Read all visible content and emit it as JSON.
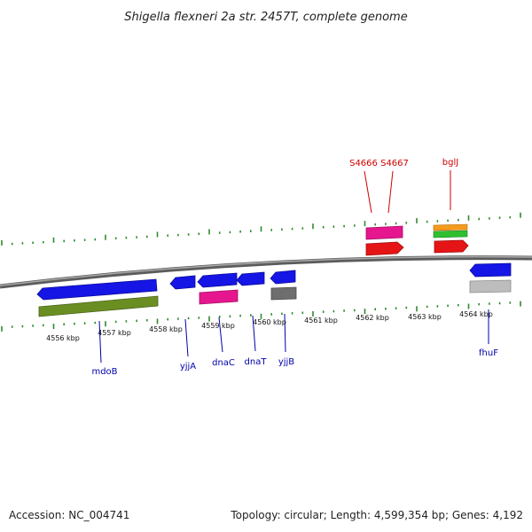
{
  "title": "Shigella flexneri 2a str. 2457T, complete genome",
  "footer": {
    "accession": "Accession: NC_004741",
    "topology": "Topology: circular; Length: 4,599,354 bp; Genes: 4,192"
  },
  "colors": {
    "backbone": "#7a7a7a",
    "ticks": "#2e8b2e",
    "forward_label": "#cc0000",
    "reverse_label": "#0000aa",
    "gene_blue": "#1515e6",
    "gene_olive": "#6b8e23",
    "gene_magenta": "#e6168f",
    "gene_red": "#e61515",
    "gene_orange": "#f59b1c",
    "gene_green": "#2fbf2f",
    "gene_darkgray": "#6e6e6e",
    "gene_lightgray": "#bdbdbd"
  },
  "scale_labels": [
    "4556 kbp",
    "4557 kbp",
    "4558 kbp",
    "4559 kbp",
    "4560 kbp",
    "4561 kbp",
    "4562 kbp",
    "4563 kbp",
    "4564 kbp"
  ],
  "gene_labels": {
    "mdoB": "mdoB",
    "yjjA": "yjjA",
    "dnaC": "dnaC",
    "dnaT": "dnaT",
    "yjjB": "yjjB",
    "fhuF": "fhuF",
    "S4666": "S4666",
    "S4667": "S4667",
    "bglJ": "bglJ"
  }
}
